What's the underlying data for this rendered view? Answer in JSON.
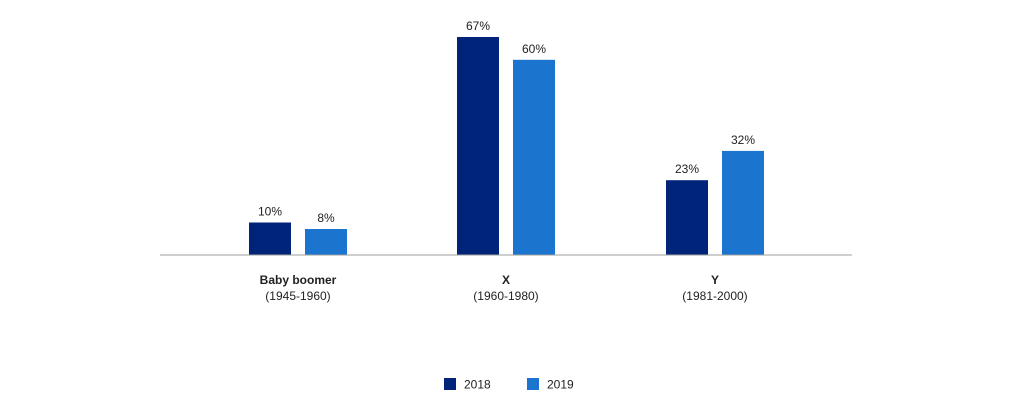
{
  "chart_data": {
    "type": "bar",
    "categories": [
      {
        "name": "Baby boomer",
        "sub": "(1945-1960)"
      },
      {
        "name": "X",
        "sub": "(1960-1980)"
      },
      {
        "name": "Y",
        "sub": "(1981-2000)"
      }
    ],
    "series": [
      {
        "name": "2018",
        "color": "#002479",
        "values": [
          10,
          67,
          23
        ],
        "labels": [
          "10%",
          "67%",
          "23%"
        ]
      },
      {
        "name": "2019",
        "color": "#1b75cf",
        "values": [
          8,
          60,
          32
        ],
        "labels": [
          "8%",
          "60%",
          "32%"
        ]
      }
    ],
    "ylim": [
      0,
      67
    ],
    "grid": false,
    "legend_position": "bottom-center",
    "axis_color": "#9e9e9e"
  }
}
